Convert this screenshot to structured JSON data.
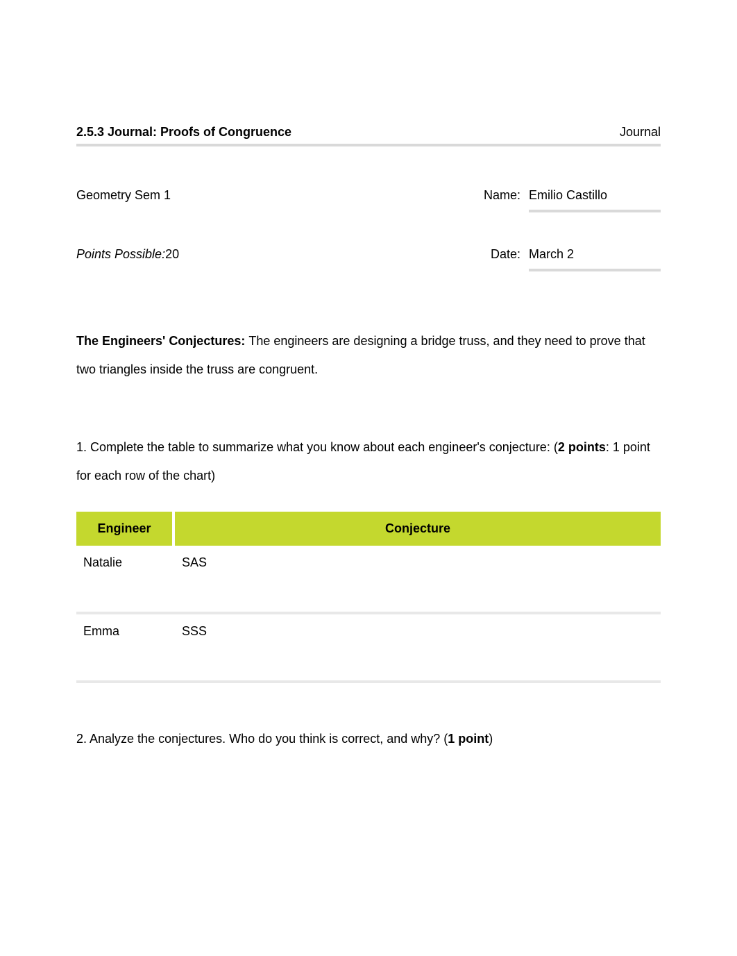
{
  "header": {
    "title": "2.5.3 Journal: Proofs of Congruence",
    "type": "Journal"
  },
  "course": "Geometry Sem 1",
  "points_label": "Points Possible:",
  "points_value": "20",
  "name_label": "Name:",
  "name_value": "Emilio Castillo",
  "date_label": "Date:",
  "date_value": "March 2",
  "intro": {
    "bold_lead": "The Engineers' Conjectures: ",
    "text": "The engineers are designing a bridge truss, and they need to prove that two triangles inside the truss are congruent."
  },
  "q1": {
    "prefix": "1. Complete the table to summarize what you know about each engineer's conjecture: (",
    "points": "2 points",
    "suffix": ": 1 point for each row of the chart)"
  },
  "table": {
    "headers": {
      "engineer": "Engineer",
      "conjecture": "Conjecture"
    },
    "rows": [
      {
        "engineer": "Natalie",
        "conjecture": "SAS"
      },
      {
        "engineer": "Emma",
        "conjecture": "SSS"
      }
    ]
  },
  "q2": {
    "prefix": "2. Analyze the conjectures. Who do you think is correct, and why? (",
    "points": "1 point",
    "suffix": ")"
  },
  "colors": {
    "table_header_bg": "#c4d82e",
    "divider": "#d9d9d9",
    "text": "#000000"
  }
}
